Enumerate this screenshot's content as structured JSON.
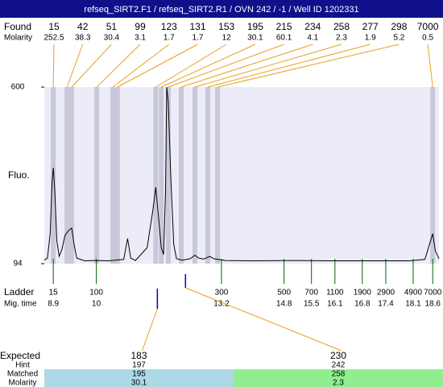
{
  "chart_data": {
    "type": "line",
    "title": "refseq_SIRT2.F1 / refseq_SIRT2.R1 / OVN 242 / -1 / Well ID 1202331",
    "y_label": "Fluo.",
    "xlim": [
      8.67,
      18.76
    ],
    "ylim": [
      94,
      600
    ],
    "yticks": [
      94,
      600
    ],
    "color": "#000000",
    "x": [
      8.67,
      8.75,
      8.82,
      8.87,
      8.9,
      8.94,
      8.99,
      9.05,
      9.12,
      9.2,
      9.3,
      9.37,
      9.43,
      9.5,
      9.7,
      10.0,
      10.3,
      10.7,
      10.8,
      10.88,
      11.0,
      11.3,
      11.45,
      11.52,
      11.58,
      11.66,
      11.72,
      11.77,
      11.8,
      11.84,
      11.9,
      11.98,
      12.05,
      12.2,
      12.4,
      12.52,
      12.62,
      12.75,
      12.9,
      13.0,
      13.3,
      14.0,
      15.0,
      16.0,
      17.0,
      18.0,
      18.4,
      18.52,
      18.6,
      18.67,
      18.76
    ],
    "values": [
      104,
      110,
      180,
      330,
      369,
      300,
      160,
      115,
      135,
      175,
      190,
      196,
      150,
      110,
      102,
      103,
      102,
      106,
      166,
      110,
      103,
      140,
      250,
      313,
      240,
      140,
      120,
      300,
      600,
      560,
      350,
      150,
      108,
      104,
      108,
      118,
      110,
      107,
      115,
      108,
      103,
      102,
      103,
      102,
      102,
      102,
      106,
      150,
      180,
      130,
      108
    ],
    "found": {
      "label": "Found",
      "molarity_label": "Molarity",
      "sizes": [
        15,
        42,
        51,
        99,
        123,
        131,
        153,
        195,
        215,
        234,
        258,
        277,
        298,
        7000
      ],
      "molarity": [
        252.5,
        38.3,
        30.4,
        3.1,
        1.7,
        1.7,
        12,
        30.1,
        60.1,
        4.1,
        2.3,
        1.9,
        5.2,
        0.5
      ],
      "times": [
        8.9,
        9.25,
        9.37,
        10.01,
        10.42,
        10.54,
        11.52,
        11.66,
        11.84,
        12.17,
        12.52,
        12.85,
        13.1,
        18.6
      ],
      "color": "#e8a020",
      "band_color": "#c8c8da"
    },
    "ladder": {
      "label": "Ladder",
      "time_label": "Mig. time",
      "sizes": [
        15,
        100,
        300,
        500,
        700,
        1100,
        1900,
        2900,
        4900,
        7000
      ],
      "times": [
        8.9,
        10,
        13.2,
        14.8,
        15.5,
        16.1,
        16.8,
        17.4,
        18.1,
        18.6
      ],
      "color": "#006400"
    },
    "expected": {
      "label": "Expected",
      "hint_label": "Hint",
      "matched_label": "Matched",
      "molarity_label": "Molarity",
      "sizes": [
        183,
        230
      ],
      "hints": [
        197,
        242
      ],
      "matched": [
        195,
        258
      ],
      "molarity": [
        30.1,
        2.3
      ],
      "times": [
        11.56,
        12.28
      ],
      "colors": [
        "#add8e6",
        "#90ee90"
      ],
      "marker_color": "#0000cc"
    }
  }
}
